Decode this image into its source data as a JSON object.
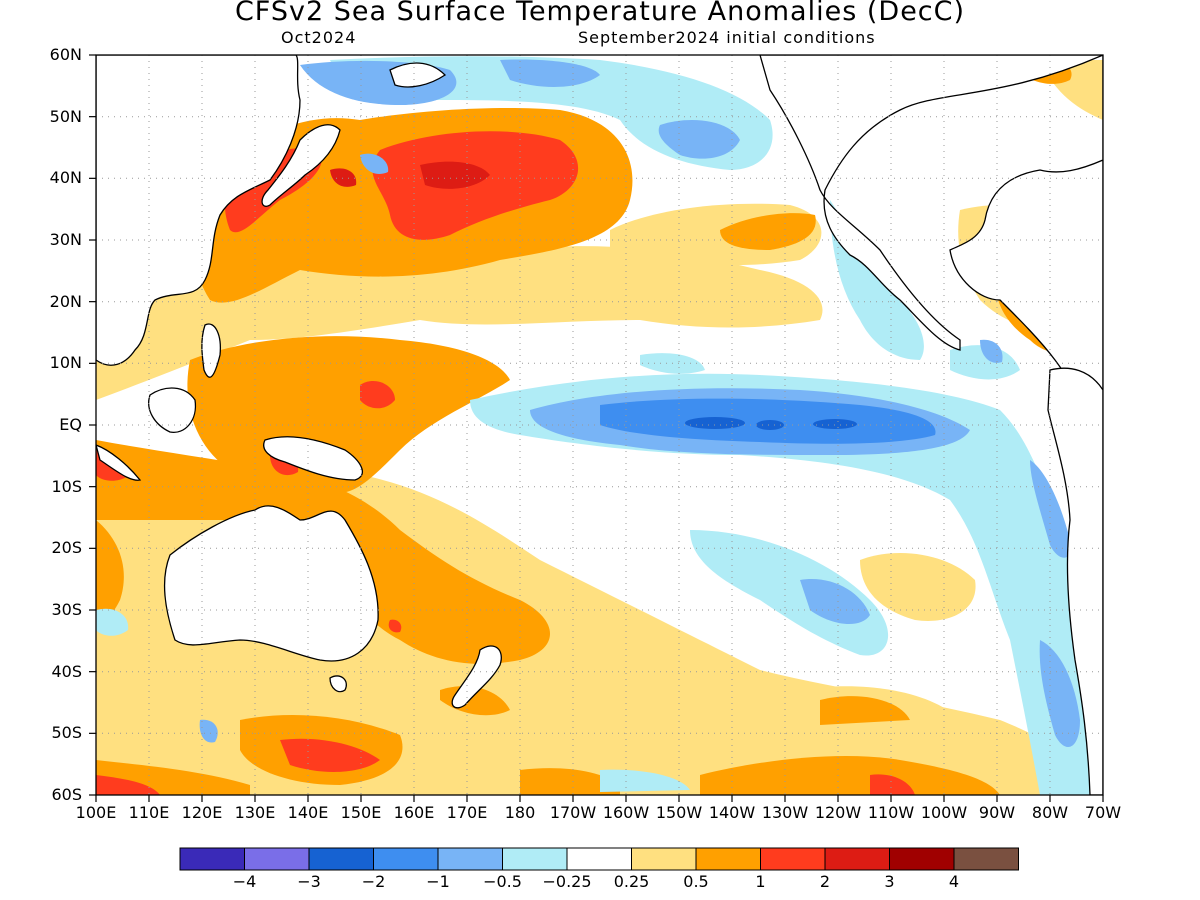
{
  "header": {
    "title": "CFSv2 Sea Surface Temperature Anomalies (DecC)",
    "forecast_month": "Oct2024",
    "initial_conditions": "September2024 initial conditions"
  },
  "axes": {
    "lat_labels": [
      "60N",
      "50N",
      "40N",
      "30N",
      "20N",
      "10N",
      "EQ",
      "10S",
      "20S",
      "30S",
      "40S",
      "50S",
      "60S"
    ],
    "lon_labels": [
      "100E",
      "110E",
      "120E",
      "130E",
      "140E",
      "150E",
      "160E",
      "170E",
      "180",
      "170W",
      "160W",
      "150W",
      "140W",
      "130W",
      "120W",
      "110W",
      "100W",
      "90W",
      "80W",
      "70W"
    ]
  },
  "colorbar": {
    "colors": [
      "#3a2ab8",
      "#7a6ee8",
      "#1662d2",
      "#3e8ef0",
      "#78b4f6",
      "#b0ecf6",
      "#ffffff",
      "#ffe080",
      "#ffa000",
      "#ff3c1e",
      "#dd1c14",
      "#a00000",
      "#7a5040"
    ],
    "labels": [
      "−4",
      "−3",
      "−2",
      "−1",
      "−0.5",
      "−0.25",
      "0.25",
      "0.5",
      "1",
      "2",
      "3",
      "4"
    ]
  }
}
